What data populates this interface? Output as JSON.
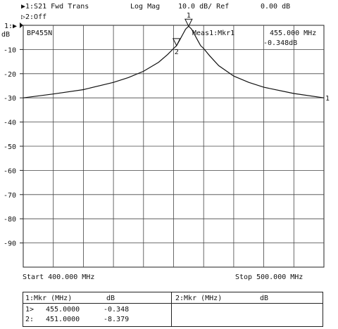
{
  "header": {
    "ch1_label": "▶1:S21 Fwd Trans",
    "format": "Log Mag",
    "scale": "10.0 dB/ Ref",
    "ref": "0.00 dB",
    "ch2_label": "▷2:Off",
    "ref_marker": "1:▶",
    "unit": "dB"
  },
  "trace_title": "BP455N",
  "active_marker": {
    "label": "Meas1:Mkr1",
    "freq": "455.000 MHz",
    "value": "-0.348dB"
  },
  "footer": {
    "start": "Start 400.000 MHz",
    "stop": "Stop 500.000 MHz"
  },
  "marker_table": {
    "left_header": {
      "label": "1:Mkr (MHz)",
      "unit": "dB"
    },
    "right_header": {
      "label": "2:Mkr (MHz)",
      "unit": "dB"
    },
    "rows": [
      {
        "id": "1>",
        "freq": "455.0000",
        "value": "-0.348"
      },
      {
        "id": "2:",
        "freq": "451.0000",
        "value": "-8.379"
      }
    ]
  },
  "chart_data": {
    "type": "line",
    "xlim": [
      400,
      500
    ],
    "ylim": [
      -100,
      0
    ],
    "y_ticks": [
      0,
      -10,
      -20,
      -30,
      -40,
      -50,
      -60,
      -70,
      -80,
      -90
    ],
    "y_tick_labels": [
      "",
      "-10",
      "-20",
      "-30",
      "-40",
      "-50",
      "-60",
      "-70",
      "-80",
      "-90"
    ],
    "grid": true,
    "series": [
      {
        "x": [
          400,
          410,
          420,
          430,
          435,
          440,
          445,
          448,
          450,
          451,
          452,
          453,
          454,
          455,
          456,
          457,
          458,
          459,
          460,
          462,
          465,
          470,
          475,
          480,
          490,
          500
        ],
        "y": [
          -30.0,
          -28.4,
          -26.6,
          -23.6,
          -21.6,
          -19.0,
          -15.3,
          -12.1,
          -9.6,
          -8.4,
          -6.2,
          -3.9,
          -1.6,
          -0.35,
          -1.6,
          -3.9,
          -6.2,
          -8.4,
          -9.6,
          -12.6,
          -16.7,
          -21.0,
          -23.6,
          -25.6,
          -28.2,
          -30.0
        ]
      }
    ],
    "markers": [
      {
        "id": "1",
        "x": 455,
        "y": -0.348
      },
      {
        "id": "2",
        "x": 451,
        "y": -8.379
      }
    ],
    "end_label": "1"
  }
}
